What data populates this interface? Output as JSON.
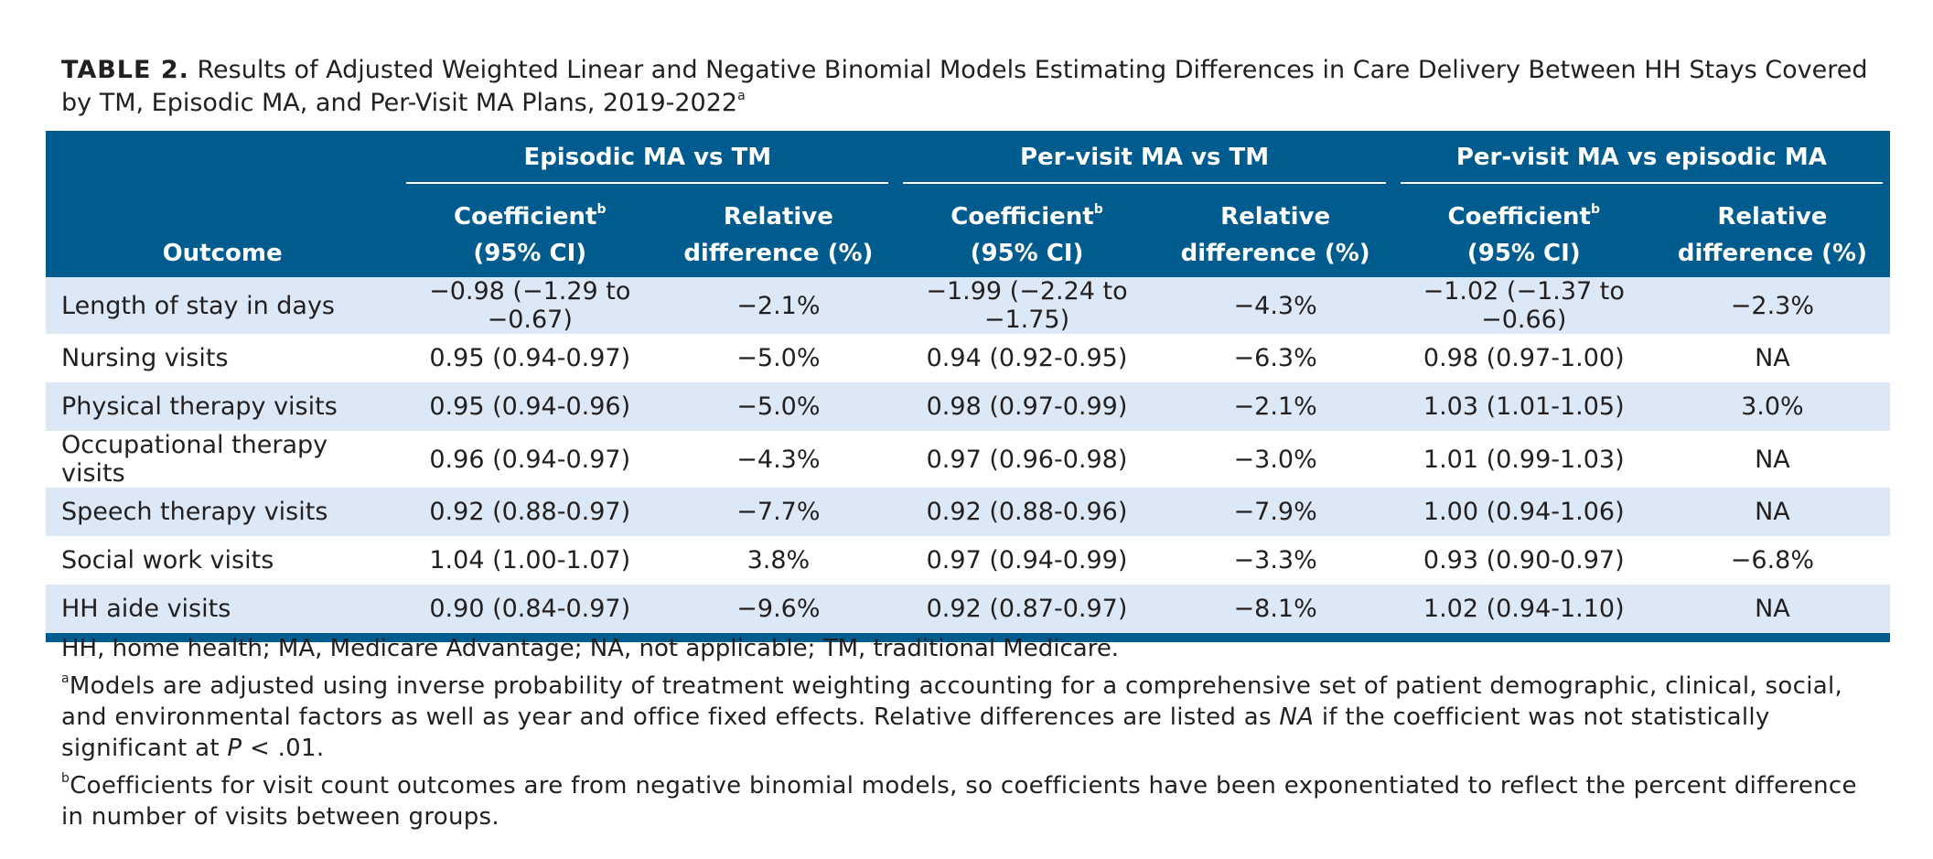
{
  "caption": {
    "label": "TABLE 2.",
    "text": "Results of Adjusted Weighted Linear and Negative Binomial Models Estimating Differences in Care Delivery Between HH Stays Covered by TM, Episodic MA, and Per-Visit MA Plans, 2019-2022",
    "footnote_mark": "a"
  },
  "table": {
    "outcome_header": "Outcome",
    "groups": [
      {
        "title": "Episodic MA vs TM"
      },
      {
        "title": "Per-visit MA vs TM"
      },
      {
        "title": "Per-visit MA vs episodic MA"
      }
    ],
    "sub_headers": {
      "coef_line1": "Coefficient",
      "coef_mark": "b",
      "coef_line2": "(95% CI)",
      "rel_line1": "Relative",
      "rel_line2": "difference (%)"
    },
    "rows": [
      {
        "outcome": "Length of stay in days",
        "c1": "−0.98 (−1.29 to −0.67)",
        "r1": "−2.1%",
        "c2": "−1.99 (−2.24 to −1.75)",
        "r2": "−4.3%",
        "c3": "−1.02 (−1.37 to −0.66)",
        "r3": "−2.3%"
      },
      {
        "outcome": "Nursing visits",
        "c1": "0.95 (0.94-0.97)",
        "r1": "−5.0%",
        "c2": "0.94 (0.92-0.95)",
        "r2": "−6.3%",
        "c3": "0.98 (0.97-1.00)",
        "r3": "NA"
      },
      {
        "outcome": "Physical therapy visits",
        "c1": "0.95 (0.94-0.96)",
        "r1": "−5.0%",
        "c2": "0.98 (0.97-0.99)",
        "r2": "−2.1%",
        "c3": "1.03 (1.01-1.05)",
        "r3": "3.0%"
      },
      {
        "outcome": "Occupational therapy visits",
        "c1": "0.96 (0.94-0.97)",
        "r1": "−4.3%",
        "c2": "0.97 (0.96-0.98)",
        "r2": "−3.0%",
        "c3": "1.01 (0.99-1.03)",
        "r3": "NA"
      },
      {
        "outcome": "Speech therapy visits",
        "c1": "0.92 (0.88-0.97)",
        "r1": "−7.7%",
        "c2": "0.92 (0.88-0.96)",
        "r2": "−7.9%",
        "c3": "1.00 (0.94-1.06)",
        "r3": "NA"
      },
      {
        "outcome": "Social work visits",
        "c1": "1.04 (1.00-1.07)",
        "r1": "3.8%",
        "c2": "0.97 (0.94-0.99)",
        "r2": "−3.3%",
        "c3": "0.93 (0.90-0.97)",
        "r3": "−6.8%"
      },
      {
        "outcome": "HH aide visits",
        "c1": "0.90 (0.84-0.97)",
        "r1": "−9.6%",
        "c2": "0.92 (0.87-0.97)",
        "r2": "−8.1%",
        "c3": "1.02 (0.94-1.10)",
        "r3": "NA"
      }
    ]
  },
  "notes": {
    "abbrev": "HH, home health; MA, Medicare Advantage; NA, not applicable; TM, traditional Medicare.",
    "a_mark": "a",
    "a_text_1": "Models are adjusted using inverse probability of treatment weighting accounting for a comprehensive set of patient demographic, clinical, social, and environmental factors as well as year and office fixed effects. Relative differences are listed as ",
    "a_na": "NA",
    "a_text_2": " if the coefficient was not statistically significant at ",
    "a_p": "P",
    "a_text_3": " < .01.",
    "b_mark": "b",
    "b_text": "Coefficients for visit count outcomes are from negative binomial models, so coefficients have been exponentiated to reflect the percent difference in number of visits between groups."
  },
  "colors": {
    "header_bg": "#005b8f",
    "stripe": "#dce8f5",
    "text": "#231f20"
  }
}
